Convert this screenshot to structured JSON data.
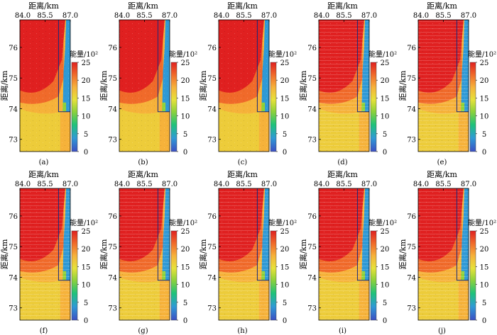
{
  "chart_data": {
    "type": "heatmap",
    "description_title": "",
    "x_axis": {
      "label": "距离/km",
      "ticks": [
        "84.0",
        "85.5",
        "87.0"
      ],
      "range": [
        84.0,
        87.0
      ]
    },
    "y_axis": {
      "label": "距离/km",
      "ticks": [
        "76",
        "75",
        "74",
        "73"
      ],
      "range": [
        72.6,
        76.9
      ]
    },
    "colorbar": {
      "label": "能量/10²",
      "ticks": [
        "25",
        "20",
        "15",
        "10",
        "5",
        "0"
      ],
      "range": [
        0,
        25
      ],
      "colors": [
        "#3b4fc4",
        "#2f9ad6",
        "#1ec27a",
        "#8fd23a",
        "#e6e23a",
        "#f6b23a",
        "#f06a2a",
        "#e02020"
      ]
    },
    "panels": [
      {
        "id": "a",
        "caption": "(a)",
        "style": "smooth"
      },
      {
        "id": "b",
        "caption": "(b)",
        "style": "smooth"
      },
      {
        "id": "c",
        "caption": "(c)",
        "style": "smooth"
      },
      {
        "id": "d",
        "caption": "(d)",
        "style": "striped"
      },
      {
        "id": "e",
        "caption": "(e)",
        "style": "striped"
      },
      {
        "id": "f",
        "caption": "(f)",
        "style": "striped"
      },
      {
        "id": "g",
        "caption": "(g)",
        "style": "striped"
      },
      {
        "id": "h",
        "caption": "(h)",
        "style": "striped"
      },
      {
        "id": "i",
        "caption": "(i)",
        "style": "striped"
      },
      {
        "id": "j",
        "caption": "(j)",
        "style": "striped"
      }
    ],
    "regions": {
      "high_energy_zone": {
        "energy": 24,
        "x_span_km": [
          84.0,
          86.7
        ],
        "y_span_km": [
          74.6,
          76.9
        ]
      },
      "low_energy_strip": {
        "energy": 3,
        "x_span_km": [
          86.5,
          87.0
        ],
        "y_span_km": [
          73.9,
          76.9
        ]
      },
      "mid_energy_zone": {
        "energy": 15,
        "x_span_km": [
          84.0,
          86.4
        ],
        "y_span_km": [
          72.6,
          74.0
        ]
      }
    }
  }
}
